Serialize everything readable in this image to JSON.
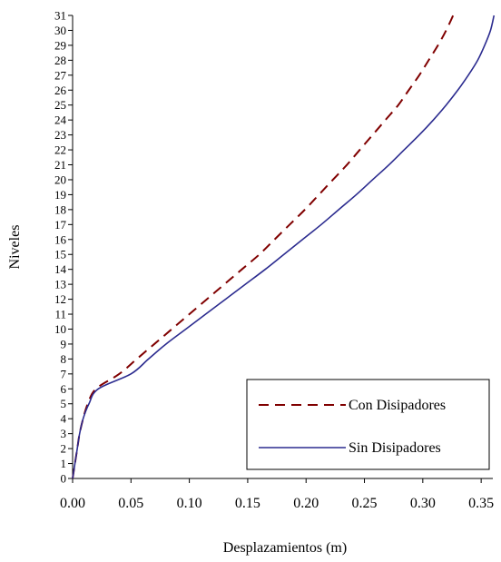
{
  "chart_data": {
    "type": "line",
    "title": "",
    "xlabel": "Desplazamientos (m)",
    "ylabel": "Niveles",
    "xlim": [
      0,
      0.36
    ],
    "ylim": [
      0,
      31
    ],
    "x_ticks": [
      "0.00",
      "0.05",
      "0.10",
      "0.15",
      "0.20",
      "0.25",
      "0.30",
      "0.35"
    ],
    "y_ticks": [
      "0",
      "1",
      "2",
      "3",
      "4",
      "5",
      "6",
      "7",
      "8",
      "9",
      "10",
      "11",
      "12",
      "13",
      "14",
      "15",
      "16",
      "17",
      "18",
      "19",
      "20",
      "21",
      "22",
      "23",
      "24",
      "25",
      "26",
      "27",
      "28",
      "29",
      "30",
      "31"
    ],
    "grid": false,
    "legend_position": "bottom-right",
    "series": [
      {
        "name": "Con Disipadores",
        "color": "#800000",
        "style": "dashed",
        "points": [
          [
            0.0,
            0
          ],
          [
            0.002,
            1
          ],
          [
            0.004,
            2
          ],
          [
            0.006,
            3
          ],
          [
            0.009,
            4
          ],
          [
            0.013,
            5
          ],
          [
            0.02,
            6
          ],
          [
            0.04,
            7
          ],
          [
            0.055,
            8
          ],
          [
            0.07,
            9
          ],
          [
            0.085,
            10
          ],
          [
            0.1,
            11
          ],
          [
            0.115,
            12
          ],
          [
            0.13,
            13
          ],
          [
            0.145,
            14
          ],
          [
            0.16,
            15
          ],
          [
            0.173,
            16
          ],
          [
            0.186,
            17
          ],
          [
            0.199,
            18
          ],
          [
            0.211,
            19
          ],
          [
            0.223,
            20
          ],
          [
            0.235,
            21
          ],
          [
            0.246,
            22
          ],
          [
            0.257,
            23
          ],
          [
            0.268,
            24
          ],
          [
            0.279,
            25
          ],
          [
            0.288,
            26
          ],
          [
            0.297,
            27
          ],
          [
            0.305,
            28
          ],
          [
            0.313,
            29
          ],
          [
            0.32,
            30
          ],
          [
            0.326,
            31
          ]
        ]
      },
      {
        "name": "Sin Disipadores",
        "color": "#2b2b8f",
        "style": "solid",
        "points": [
          [
            0.0,
            0
          ],
          [
            0.002,
            1
          ],
          [
            0.004,
            2
          ],
          [
            0.006,
            3
          ],
          [
            0.009,
            4
          ],
          [
            0.014,
            5
          ],
          [
            0.022,
            6
          ],
          [
            0.05,
            7
          ],
          [
            0.065,
            8
          ],
          [
            0.08,
            9
          ],
          [
            0.097,
            10
          ],
          [
            0.114,
            11
          ],
          [
            0.131,
            12
          ],
          [
            0.148,
            13
          ],
          [
            0.165,
            14
          ],
          [
            0.181,
            15
          ],
          [
            0.197,
            16
          ],
          [
            0.213,
            17
          ],
          [
            0.228,
            18
          ],
          [
            0.243,
            19
          ],
          [
            0.257,
            20
          ],
          [
            0.271,
            21
          ],
          [
            0.284,
            22
          ],
          [
            0.297,
            23
          ],
          [
            0.309,
            24
          ],
          [
            0.32,
            25
          ],
          [
            0.33,
            26
          ],
          [
            0.339,
            27
          ],
          [
            0.347,
            28
          ],
          [
            0.353,
            29
          ],
          [
            0.358,
            30
          ],
          [
            0.361,
            31
          ]
        ]
      }
    ]
  }
}
